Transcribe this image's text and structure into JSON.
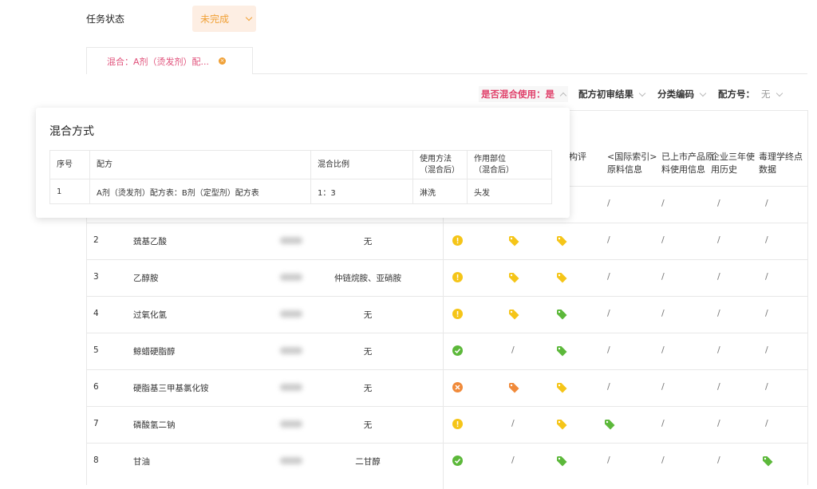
{
  "task_status": {
    "label": "任务状态",
    "value": "未完成"
  },
  "tab": {
    "label": "混合：A剂（烫发剂）配...",
    "close_icon": "close-circle-icon"
  },
  "filters": [
    {
      "label": "是否混合使用：是",
      "active": true
    },
    {
      "label": "配方初审结果"
    },
    {
      "label": "分类编码"
    },
    {
      "label": "配方号：",
      "value": "无"
    }
  ],
  "table": {
    "headers": [
      "机构评\n据",
      "<国际索引>\n原料信息",
      "已上市产品原\n料使用信息",
      "企业三年使\n用历史",
      "毒理学终点\n数据"
    ],
    "rows": [
      {
        "no": "1",
        "name": "",
        "impurity": "",
        "status": null,
        "cols": [
          null,
          null,
          null,
          "/",
          "/",
          "/",
          "/"
        ]
      },
      {
        "no": "2",
        "name": "巯基乙酸",
        "impurity": "无",
        "status": "warning",
        "cols": [
          "yellow",
          "yellow",
          "/",
          "/",
          "/",
          "/"
        ]
      },
      {
        "no": "3",
        "name": "乙醇胺",
        "impurity": "仲链烷胺、亚硝胺",
        "status": "warning",
        "cols": [
          "yellow",
          "yellow",
          "/",
          "/",
          "/",
          "/"
        ]
      },
      {
        "no": "4",
        "name": "过氧化氢",
        "impurity": "无",
        "status": "warning",
        "cols": [
          "yellow",
          "green",
          "/",
          "/",
          "/",
          "/"
        ]
      },
      {
        "no": "5",
        "name": "鲸蜡硬脂醇",
        "impurity": "无",
        "status": "ok",
        "cols": [
          "/",
          "green",
          "/",
          "/",
          "/",
          "/"
        ]
      },
      {
        "no": "6",
        "name": "硬脂基三甲基氯化铵",
        "impurity": "无",
        "status": "error",
        "cols": [
          "orange",
          "yellow",
          "/",
          "/",
          "/",
          "/"
        ]
      },
      {
        "no": "7",
        "name": "磷酸氢二钠",
        "impurity": "无",
        "status": "warning",
        "cols": [
          "/",
          "yellow",
          "green",
          "/",
          "/",
          "/"
        ]
      },
      {
        "no": "8",
        "name": "甘油",
        "impurity": "二甘醇",
        "status": "ok",
        "cols": [
          "/",
          "green",
          "/",
          "/",
          "/",
          "green"
        ]
      }
    ]
  },
  "popup": {
    "title": "混合方式",
    "headers": [
      "序号",
      "配方",
      "混合比例",
      "使用方法\n（混合后）",
      "作用部位\n（混合后）"
    ],
    "rows": [
      [
        "1",
        "A剂（烫发剂）配方表：B剂（定型剂）配方表",
        "1：3",
        "淋洗",
        "头发"
      ]
    ]
  },
  "colors": {
    "yellow": "#f5c518",
    "green": "#5cb83a",
    "orange": "#f08a3a",
    "warning": "#f5c518",
    "ok": "#5cb83a",
    "error": "#f08a3a",
    "accent": "#e0406a"
  }
}
